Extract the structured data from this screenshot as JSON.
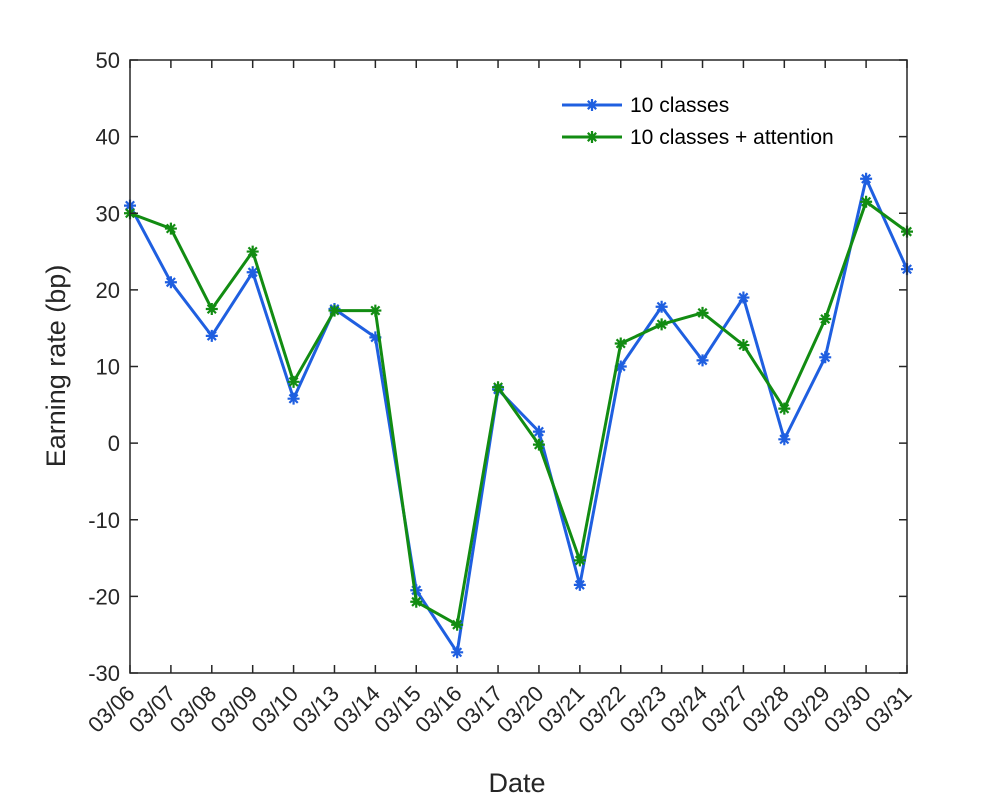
{
  "chart_data": {
    "type": "line",
    "xlabel": "Date",
    "ylabel": "Earning rate (bp)",
    "ylim": [
      -30,
      50
    ],
    "yticks": [
      -30,
      -20,
      -10,
      0,
      10,
      20,
      30,
      40,
      50
    ],
    "grid": false,
    "legend_position": "top-right",
    "categories": [
      "03/06",
      "03/07",
      "03/08",
      "03/09",
      "03/10",
      "03/13",
      "03/14",
      "03/15",
      "03/16",
      "03/17",
      "03/20",
      "03/21",
      "03/22",
      "03/23",
      "03/24",
      "03/27",
      "03/28",
      "03/29",
      "03/30",
      "03/31"
    ],
    "series": [
      {
        "name": "10 classes",
        "color": "#1f5fe0",
        "marker": "asterisk",
        "values": [
          31.0,
          21.0,
          14.0,
          22.3,
          5.8,
          17.5,
          13.8,
          -19.2,
          -27.3,
          7.0,
          1.5,
          -18.5,
          10.0,
          17.8,
          10.8,
          19.0,
          0.5,
          11.2,
          34.5,
          22.7
        ]
      },
      {
        "name": "10 classes + attention",
        "color": "#128c12",
        "marker": "asterisk",
        "values": [
          30.0,
          28.0,
          17.5,
          25.0,
          8.0,
          17.3,
          17.3,
          -20.7,
          -23.7,
          7.3,
          -0.2,
          -15.3,
          13.0,
          15.5,
          17.0,
          12.8,
          4.5,
          16.2,
          31.5,
          27.6
        ]
      }
    ]
  }
}
